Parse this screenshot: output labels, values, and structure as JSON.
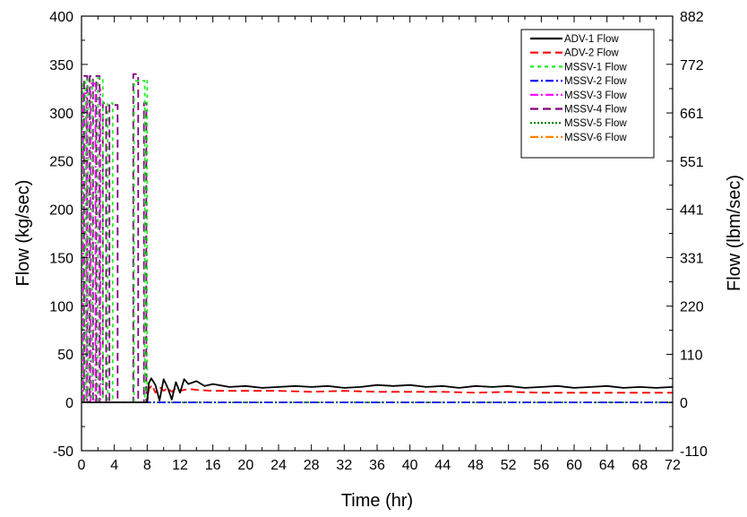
{
  "chart_data": {
    "type": "line",
    "xlabel": "Time (hr)",
    "ylabel": "Flow (kg/sec)",
    "y2label": "Flow (lbm/sec)",
    "xlim": [
      0,
      72
    ],
    "ylim": [
      -50,
      400
    ],
    "y2lim": [
      -110,
      882
    ],
    "x_ticks": [
      0,
      4,
      8,
      12,
      16,
      20,
      24,
      28,
      32,
      36,
      40,
      44,
      48,
      52,
      56,
      60,
      64,
      68,
      72
    ],
    "y_ticks": [
      -50,
      0,
      50,
      100,
      150,
      200,
      250,
      300,
      350,
      400
    ],
    "y2_ticks": [
      -110,
      0,
      110,
      220,
      331,
      441,
      551,
      661,
      772,
      882
    ],
    "grid": false,
    "legend_position": "top-right",
    "series": [
      {
        "name": "ADV-1 Flow",
        "color": "#000000",
        "dash": "solid",
        "x": [
          0,
          8,
          8.2,
          8.5,
          9,
          9.5,
          10,
          10.5,
          11,
          11.5,
          12,
          12.5,
          13,
          14,
          15,
          16,
          18,
          20,
          22,
          24,
          26,
          28,
          30,
          32,
          34,
          36,
          38,
          40,
          42,
          44,
          46,
          48,
          50,
          52,
          54,
          56,
          58,
          60,
          62,
          64,
          66,
          68,
          70,
          72
        ],
        "y": [
          0,
          0,
          20,
          25,
          18,
          2,
          24,
          15,
          3,
          21,
          10,
          24,
          19,
          22,
          17,
          19,
          16,
          17,
          15,
          16,
          17,
          16,
          17,
          15,
          16,
          18,
          17,
          18,
          16,
          17,
          15,
          17,
          16,
          17,
          15,
          16,
          17,
          15,
          16,
          17,
          15,
          16,
          15,
          16
        ]
      },
      {
        "name": "ADV-2 Flow",
        "color": "#ff0000",
        "dash": "dashed",
        "x": [
          0,
          8,
          8.2,
          8.6,
          9,
          9.5,
          10,
          10.5,
          11,
          11.5,
          12,
          13,
          14,
          16,
          20,
          24,
          28,
          32,
          36,
          40,
          44,
          48,
          52,
          56,
          60,
          64,
          68,
          72
        ],
        "y": [
          0,
          0,
          14,
          18,
          10,
          16,
          12,
          15,
          11,
          15,
          12,
          14,
          13,
          12,
          12,
          12,
          11,
          12,
          11,
          11,
          11,
          10,
          11,
          10,
          10,
          10,
          10,
          10
        ]
      },
      {
        "name": "MSSV-1 Flow",
        "color": "#22ee22",
        "dash": "short-dash",
        "x": [
          0.1,
          0.1,
          0.5,
          0.5,
          0.8,
          0.8,
          1.3,
          1.3,
          2.0,
          2.0,
          2.6,
          2.6,
          3.2,
          3.2,
          3.8,
          3.8,
          6.4,
          6.4,
          7.7,
          7.7,
          8.0,
          8.0
        ],
        "y": [
          0,
          332,
          332,
          0,
          0,
          335,
          335,
          0,
          0,
          336,
          336,
          0,
          0,
          310,
          310,
          0,
          0,
          333,
          333,
          0,
          0,
          336
        ]
      },
      {
        "name": "MSSV-2 Flow",
        "color": "#0000ff",
        "dash": "dash-dot",
        "x": [
          0,
          72
        ],
        "y": [
          0,
          0
        ]
      },
      {
        "name": "MSSV-3 Flow",
        "color": "#ff00ff",
        "dash": "dash-dot",
        "x": [
          0.2,
          0.2,
          0.6,
          0.6,
          1.1,
          1.1,
          1.7,
          1.7,
          2.3,
          2.3
        ],
        "y": [
          0,
          320,
          320,
          0,
          0,
          330,
          330,
          0,
          0,
          325
        ]
      },
      {
        "name": "MSSV-4 Flow",
        "color": "#800080",
        "dash": "dashed",
        "x": [
          0.3,
          0.3,
          0.7,
          0.7,
          1.0,
          1.0,
          1.4,
          1.4,
          1.8,
          1.8,
          2.2,
          2.2,
          2.6,
          2.6,
          3.0,
          3.0,
          3.4,
          3.4,
          4.4,
          4.4,
          6.3,
          6.3,
          6.9,
          6.9,
          7.6,
          7.6,
          7.9,
          7.9
        ],
        "y": [
          0,
          338,
          338,
          0,
          0,
          338,
          338,
          0,
          0,
          338,
          338,
          0,
          0,
          310,
          310,
          0,
          0,
          308,
          308,
          0,
          0,
          340,
          340,
          0,
          0,
          310,
          310,
          0
        ]
      },
      {
        "name": "MSSV-5 Flow",
        "color": "#008000",
        "dash": "dotted",
        "x": [
          0,
          72
        ],
        "y": [
          0,
          0
        ]
      },
      {
        "name": "MSSV-6 Flow",
        "color": "#ff8000",
        "dash": "dash-dot",
        "x": [
          0,
          72
        ],
        "y": [
          0,
          0
        ]
      }
    ]
  }
}
